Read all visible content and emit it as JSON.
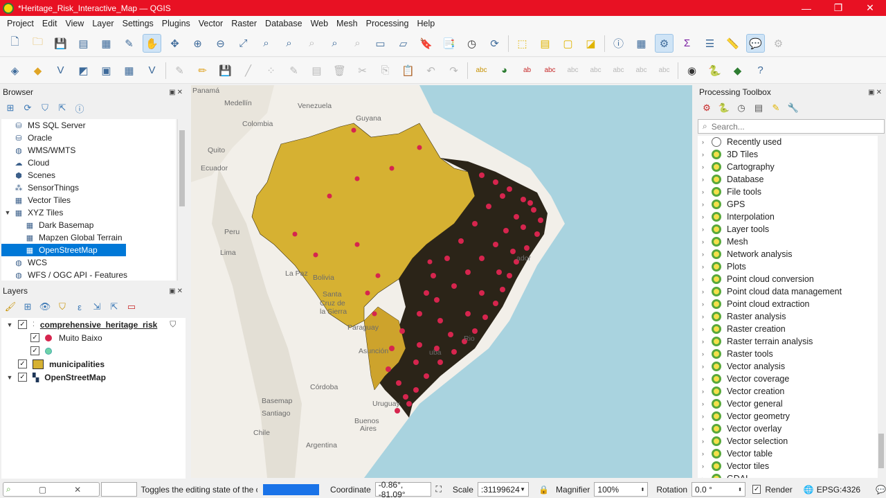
{
  "window": {
    "title": "*Heritage_Risk_Interactive_Map — QGIS",
    "controls": [
      "—",
      "❐",
      "✕"
    ]
  },
  "menu": [
    "Project",
    "Edit",
    "View",
    "Layer",
    "Settings",
    "Plugins",
    "Vector",
    "Raster",
    "Database",
    "Web",
    "Mesh",
    "Processing",
    "Help"
  ],
  "browser": {
    "title": "Browser",
    "items": [
      {
        "label": "MS SQL Server",
        "icon": "database-icon",
        "indent": 0
      },
      {
        "label": "Oracle",
        "icon": "database-icon",
        "indent": 0
      },
      {
        "label": "WMS/WMTS",
        "icon": "globe-icon",
        "indent": 0
      },
      {
        "label": "Cloud",
        "icon": "cloud-icon",
        "indent": 0
      },
      {
        "label": "Scenes",
        "icon": "cube-icon",
        "indent": 0
      },
      {
        "label": "SensorThings",
        "icon": "sensor-icon",
        "indent": 0
      },
      {
        "label": "Vector Tiles",
        "icon": "grid-icon",
        "indent": 0
      },
      {
        "label": "XYZ Tiles",
        "icon": "grid-icon",
        "indent": 0,
        "expanded": true
      },
      {
        "label": "Dark Basemap",
        "icon": "grid-icon",
        "indent": 1
      },
      {
        "label": "Mapzen Global Terrain",
        "icon": "grid-icon",
        "indent": 1
      },
      {
        "label": "OpenStreetMap",
        "icon": "grid-icon",
        "indent": 1,
        "selected": true
      },
      {
        "label": "WCS",
        "icon": "globe-icon",
        "indent": 0
      },
      {
        "label": "WFS / OGC API - Features",
        "icon": "globe-icon",
        "indent": 0
      }
    ]
  },
  "layers": {
    "title": "Layers",
    "items": [
      {
        "label": "comprehensive_heritage_risk",
        "bold": true,
        "underline": true,
        "level": 0
      },
      {
        "label": "Muito Baixo",
        "level": 1,
        "color": "#d6254e"
      },
      {
        "label": "",
        "level": 1,
        "color": "#6fd3a8"
      },
      {
        "label": "municipalities",
        "bold": true,
        "level": 0
      },
      {
        "label": "OpenStreetMap",
        "bold": true,
        "level": 0
      }
    ]
  },
  "map": {
    "labels": [
      {
        "text": "Panamá",
        "cls": ""
      },
      {
        "text": "Medellín"
      },
      {
        "text": "Venezuela"
      },
      {
        "text": "Colombia"
      },
      {
        "text": "Guyana"
      },
      {
        "text": "Quito"
      },
      {
        "text": "Ecuador"
      },
      {
        "text": "Peru"
      },
      {
        "text": "Lima"
      },
      {
        "text": "La Paz"
      },
      {
        "text": "Bolivia"
      },
      {
        "text": "Santa"
      },
      {
        "text": "Cruz de"
      },
      {
        "text": "la Sierra"
      },
      {
        "text": "Paraguay"
      },
      {
        "text": "Asunción"
      },
      {
        "text": "Córdoba"
      },
      {
        "text": "Basemap"
      },
      {
        "text": "Santiago"
      },
      {
        "text": "Chile"
      },
      {
        "text": "Buenos"
      },
      {
        "text": "Aires"
      },
      {
        "text": "Argentina"
      },
      {
        "text": "Uruguay"
      },
      {
        "text": "ador"
      },
      {
        "text": "uba"
      },
      {
        "text": "Rio"
      }
    ]
  },
  "toolbox": {
    "title": "Processing Toolbox",
    "search_placeholder": "Search...",
    "groups": [
      "Recently used",
      "3D Tiles",
      "Cartography",
      "Database",
      "File tools",
      "GPS",
      "Interpolation",
      "Layer tools",
      "Mesh",
      "Network analysis",
      "Plots",
      "Point cloud conversion",
      "Point cloud data management",
      "Point cloud extraction",
      "Raster analysis",
      "Raster creation",
      "Raster terrain analysis",
      "Raster tools",
      "Vector analysis",
      "Vector coverage",
      "Vector creation",
      "Vector general",
      "Vector geometry",
      "Vector overlay",
      "Vector selection",
      "Vector table",
      "Vector tiles",
      "GDAL"
    ]
  },
  "status": {
    "message": "Toggles the editing state of the curre",
    "coordinate_label": "Coordinate",
    "coordinate_value": "-0.86°, -81.09°",
    "scale_label": "Scale",
    "scale_value": ":31199624",
    "magnifier_label": "Magnifier",
    "magnifier_value": "100%",
    "rotation_label": "Rotation",
    "rotation_value": "0.0 °",
    "render_label": "Render",
    "crs": "EPSG:4326"
  }
}
